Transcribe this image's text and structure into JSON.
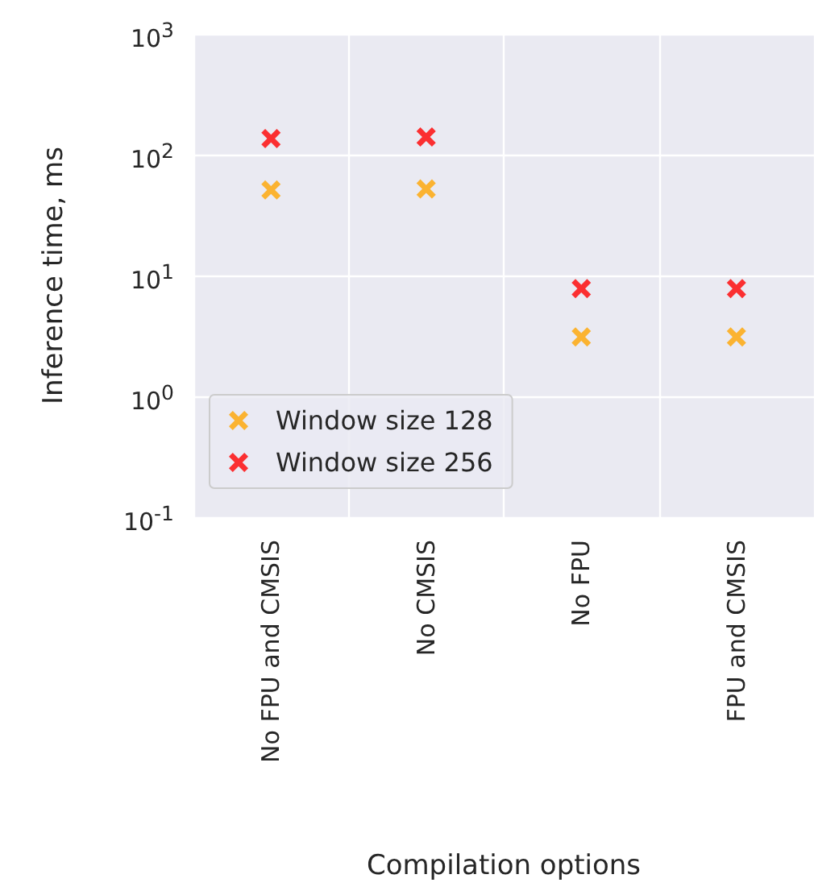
{
  "chart_data": {
    "type": "scatter",
    "xlabel": "Compilation options",
    "ylabel": "Inference time, ms",
    "categories": [
      "No FPU and CMSIS",
      "No CMSIS",
      "No FPU",
      "FPU and CMSIS"
    ],
    "series": [
      {
        "name": "Window size 128",
        "color": "#ffa500",
        "values": [
          51,
          52,
          3.1,
          3.1
        ]
      },
      {
        "name": "Window size 256",
        "color": "#ff0000",
        "values": [
          136,
          140,
          7.8,
          7.8
        ]
      }
    ],
    "log": "y",
    "ylim": [
      0.1,
      1000
    ],
    "yticks": [
      {
        "value": 0.1,
        "label": "10$^{-1}$"
      },
      {
        "value": 1,
        "label": "10$^{0}$"
      },
      {
        "value": 10,
        "label": "10$^{1}$"
      },
      {
        "value": 100,
        "label": "10$^{2}$"
      },
      {
        "value": 1000,
        "label": "10$^{3}$"
      }
    ],
    "grid": true,
    "legend": "bottom left",
    "marker": "cross"
  }
}
